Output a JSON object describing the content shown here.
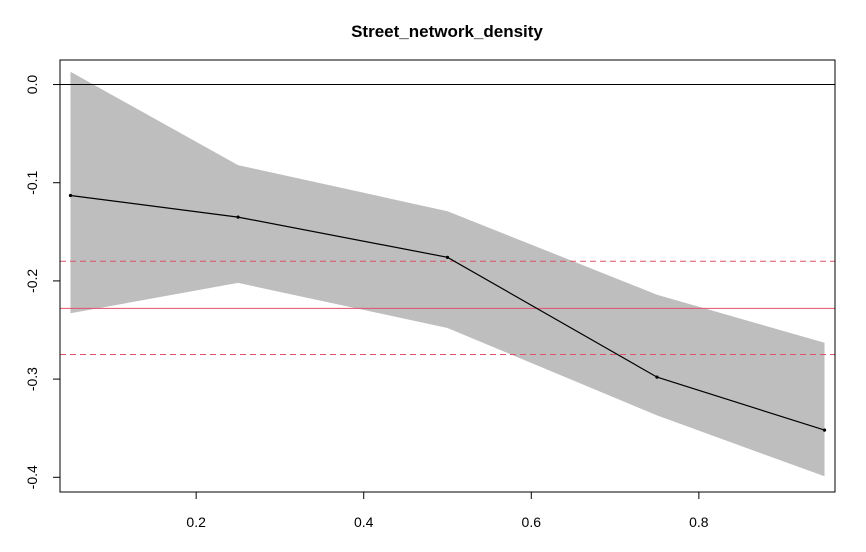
{
  "chart_data": {
    "type": "line",
    "title": "Street_network_density",
    "xlabel": "",
    "ylabel": "",
    "xlim": [
      0.0375,
      0.9625
    ],
    "ylim": [
      -0.415,
      0.025
    ],
    "x_ticks": [
      0.2,
      0.4,
      0.6,
      0.8
    ],
    "x_tick_labels": [
      "0.2",
      "0.4",
      "0.6",
      "0.8"
    ],
    "y_ticks": [
      0.0,
      -0.1,
      -0.2,
      -0.3,
      -0.4
    ],
    "y_tick_labels": [
      "0.0",
      "-0.1",
      "-0.2",
      "-0.3",
      "-0.4"
    ],
    "grid": false,
    "series": [
      {
        "role": "quantile-estimate",
        "x": [
          0.05,
          0.25,
          0.5,
          0.75,
          0.95
        ],
        "y": [
          -0.113,
          -0.135,
          -0.176,
          -0.298,
          -0.352
        ],
        "lower": [
          -0.233,
          -0.202,
          -0.248,
          -0.337,
          -0.399
        ],
        "upper": [
          0.013,
          -0.082,
          -0.129,
          -0.214,
          -0.263
        ],
        "color": "#000000",
        "band_color": "#bebebe"
      }
    ],
    "reference_lines": [
      {
        "y": 0.0,
        "color": "#000000",
        "style": "solid"
      },
      {
        "y": -0.228,
        "color": "#df536b",
        "style": "solid"
      },
      {
        "y": -0.18,
        "color": "#df536b",
        "style": "dashed"
      },
      {
        "y": -0.275,
        "color": "#df536b",
        "style": "dashed"
      }
    ]
  }
}
